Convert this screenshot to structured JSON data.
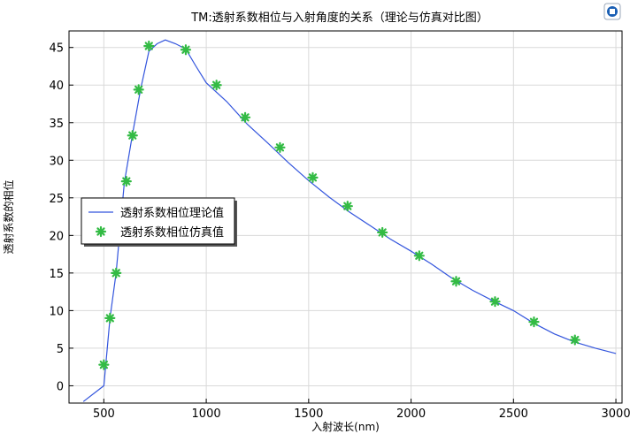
{
  "chart_data": {
    "type": "line",
    "title": "TM:透射系数相位与入射角度的关系（理论与仿真对比图）",
    "xlabel": "入射波长(nm)",
    "ylabel": "透射系数的相位",
    "xlim": [
      330,
      3030
    ],
    "ylim": [
      -2.3,
      47.2
    ],
    "xticks": [
      500,
      1000,
      1500,
      2000,
      2500,
      3000
    ],
    "yticks": [
      0,
      5,
      10,
      15,
      20,
      25,
      30,
      35,
      40,
      45
    ],
    "grid": true,
    "legend_position": "left-middle",
    "series": [
      {
        "name": "透射系数相位理论值",
        "style": "line",
        "color": "#3355dd",
        "x": [
          400,
          500,
          530,
          560,
          600,
          640,
          680,
          720,
          760,
          800,
          850,
          900,
          950,
          1000,
          1100,
          1200,
          1300,
          1400,
          1500,
          1600,
          1700,
          1800,
          1900,
          2000,
          2100,
          2200,
          2300,
          2400,
          2500,
          2600,
          2700,
          2800,
          2900,
          3000
        ],
        "y": [
          -2.1,
          0,
          9,
          15,
          27,
          33.5,
          39.5,
          44.5,
          45.5,
          46,
          45.5,
          44.8,
          42.5,
          40.3,
          37.8,
          34.8,
          32.3,
          29.7,
          27.3,
          25.1,
          23.1,
          21.3,
          19.5,
          17.9,
          16.2,
          14.3,
          12.7,
          11.3,
          10,
          8.3,
          6.9,
          5.8,
          5,
          4.3
        ]
      },
      {
        "name": "透射系数相位仿真值",
        "style": "marker",
        "color": "#33bb44",
        "x": [
          500,
          530,
          560,
          610,
          640,
          670,
          720,
          900,
          1050,
          1190,
          1360,
          1520,
          1690,
          1860,
          2040,
          2220,
          2410,
          2600,
          2800
        ],
        "y": [
          2.8,
          9,
          15,
          27.2,
          33.3,
          39.4,
          45.2,
          44.7,
          40,
          35.7,
          31.7,
          27.7,
          23.9,
          20.4,
          17.3,
          13.9,
          11.2,
          8.5,
          6.1
        ]
      }
    ]
  },
  "colors": {
    "theory_line": "#3355dd",
    "simulation_marker": "#33bb44",
    "grid": "#d9d9d9",
    "toolbar_icon": "#1a5fb4"
  },
  "toolbar": {
    "icon_name": "comsol-logo-icon"
  }
}
